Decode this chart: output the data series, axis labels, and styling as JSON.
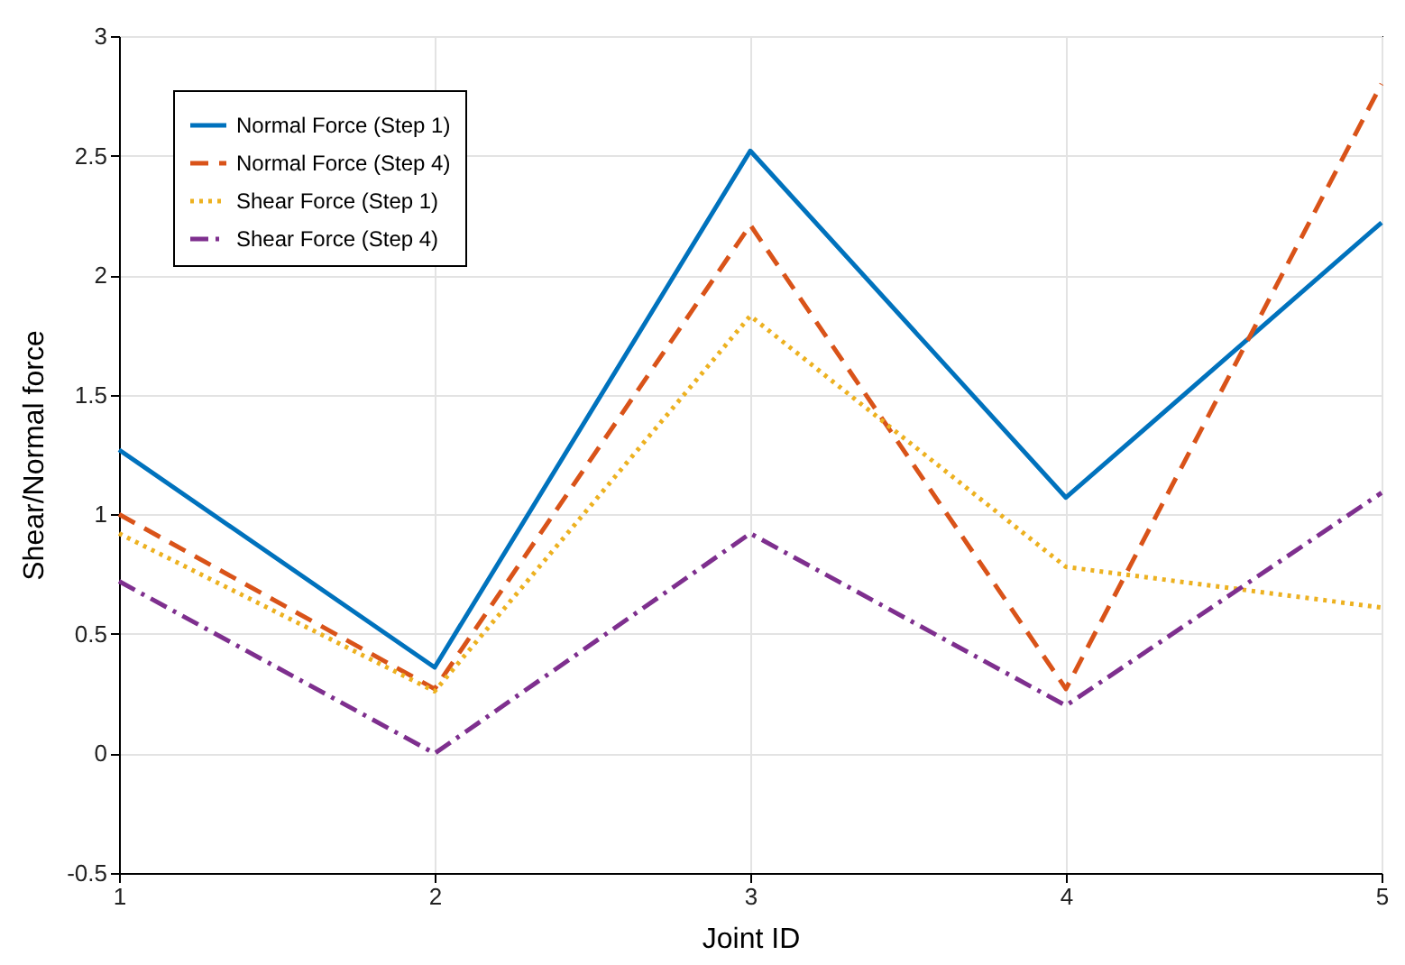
{
  "chart_data": {
    "type": "line",
    "xlabel": "Joint ID",
    "ylabel": "Shear/Normal force",
    "x": [
      1,
      2,
      3,
      4,
      5
    ],
    "xlim": [
      1,
      5
    ],
    "xticks": [
      1,
      2,
      3,
      4,
      5
    ],
    "ylim": [
      -0.5,
      3
    ],
    "yticks": [
      -0.5,
      0,
      0.5,
      1,
      1.5,
      2,
      2.5,
      3
    ],
    "grid": true,
    "legend": "top left",
    "series": [
      {
        "name": "Normal Force (Step 1)",
        "color": "#0072bd",
        "line_style": "solid",
        "values": [
          1.27,
          0.36,
          2.52,
          1.07,
          2.22
        ]
      },
      {
        "name": "Normal Force (Step 4)",
        "color": "#d95319",
        "line_style": "dashed",
        "values": [
          1.0,
          0.27,
          2.21,
          0.27,
          2.8
        ]
      },
      {
        "name": "Shear Force (Step 1)",
        "color": "#edb120",
        "line_style": "dotted",
        "values": [
          0.92,
          0.26,
          1.83,
          0.78,
          0.61
        ]
      },
      {
        "name": "Shear Force (Step 4)",
        "color": "#7e2f8e",
        "line_style": "dashdot",
        "values": [
          0.72,
          0.0,
          0.92,
          0.2,
          1.09
        ]
      }
    ]
  }
}
